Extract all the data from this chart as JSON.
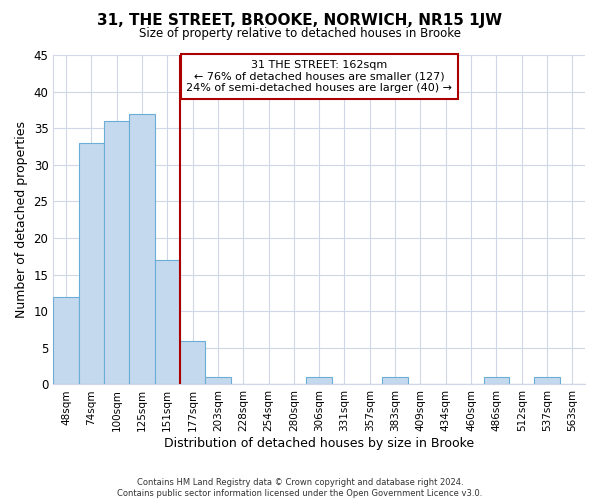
{
  "title": "31, THE STREET, BROOKE, NORWICH, NR15 1JW",
  "subtitle": "Size of property relative to detached houses in Brooke",
  "xlabel": "Distribution of detached houses by size in Brooke",
  "ylabel": "Number of detached properties",
  "bar_labels": [
    "48sqm",
    "74sqm",
    "100sqm",
    "125sqm",
    "151sqm",
    "177sqm",
    "203sqm",
    "228sqm",
    "254sqm",
    "280sqm",
    "306sqm",
    "331sqm",
    "357sqm",
    "383sqm",
    "409sqm",
    "434sqm",
    "460sqm",
    "486sqm",
    "512sqm",
    "537sqm",
    "563sqm"
  ],
  "bar_values": [
    12,
    33,
    36,
    37,
    17,
    6,
    1,
    0,
    0,
    0,
    1,
    0,
    0,
    1,
    0,
    0,
    0,
    1,
    0,
    1,
    0
  ],
  "bar_color": "#c5d9ee",
  "bar_edge_color": "#6aadd5",
  "marker_line_color": "#aa0000",
  "annotation_text": "31 THE STREET: 162sqm\n← 76% of detached houses are smaller (127)\n24% of semi-detached houses are larger (40) →",
  "annotation_box_color": "#ffffff",
  "annotation_box_edge_color": "#aa0000",
  "ylim": [
    0,
    45
  ],
  "yticks": [
    0,
    5,
    10,
    15,
    20,
    25,
    30,
    35,
    40,
    45
  ],
  "footer_line1": "Contains HM Land Registry data © Crown copyright and database right 2024.",
  "footer_line2": "Contains public sector information licensed under the Open Government Licence v3.0.",
  "background_color": "#ffffff",
  "grid_color": "#d0d8e8"
}
